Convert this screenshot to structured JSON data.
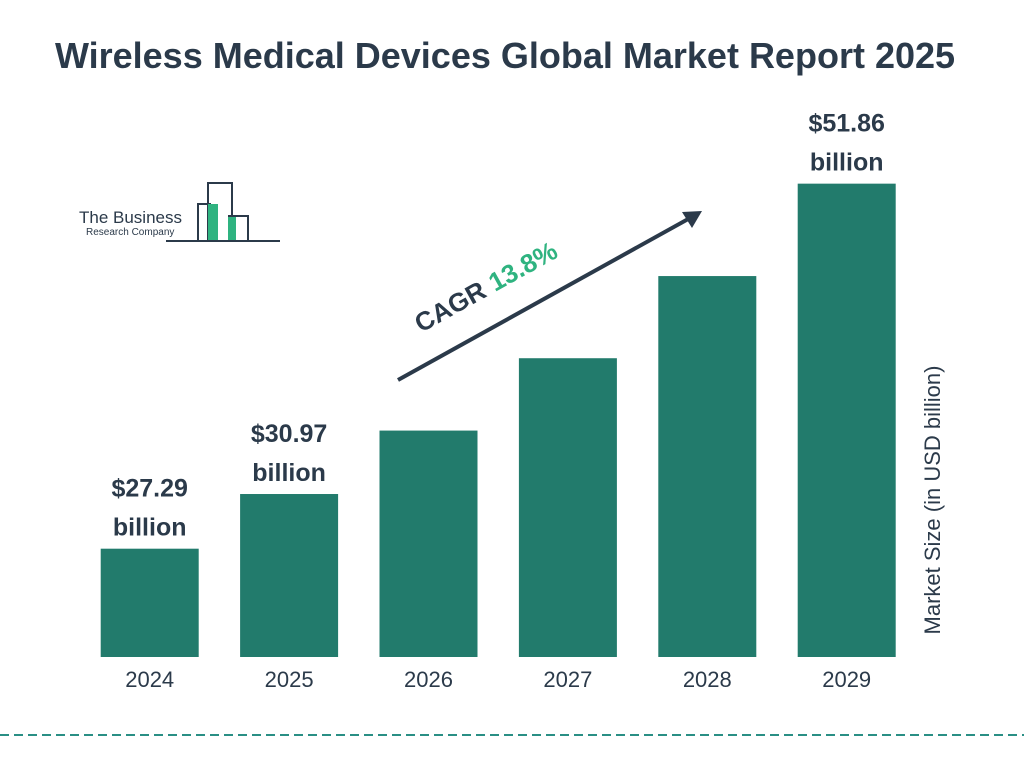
{
  "chart_data": {
    "type": "bar",
    "title": "Wireless Medical Devices Global Market Report 2025",
    "y_label": "Market Size (in USD billion)",
    "categories": [
      "2024",
      "2025",
      "2026",
      "2027",
      "2028",
      "2029"
    ],
    "values": [
      27.29,
      30.97,
      35.24,
      40.11,
      45.64,
      51.86
    ],
    "value_labels": [
      "$27.29 billion",
      "$30.97 billion",
      null,
      null,
      null,
      "$51.86 billion"
    ],
    "color": "#227b6c",
    "ylim": [
      20,
      55
    ],
    "annotations": {
      "cagr_label": "CAGR",
      "cagr_value": "13.8%"
    },
    "logo": {
      "line1": "The Business",
      "line2": "Research Company"
    }
  }
}
